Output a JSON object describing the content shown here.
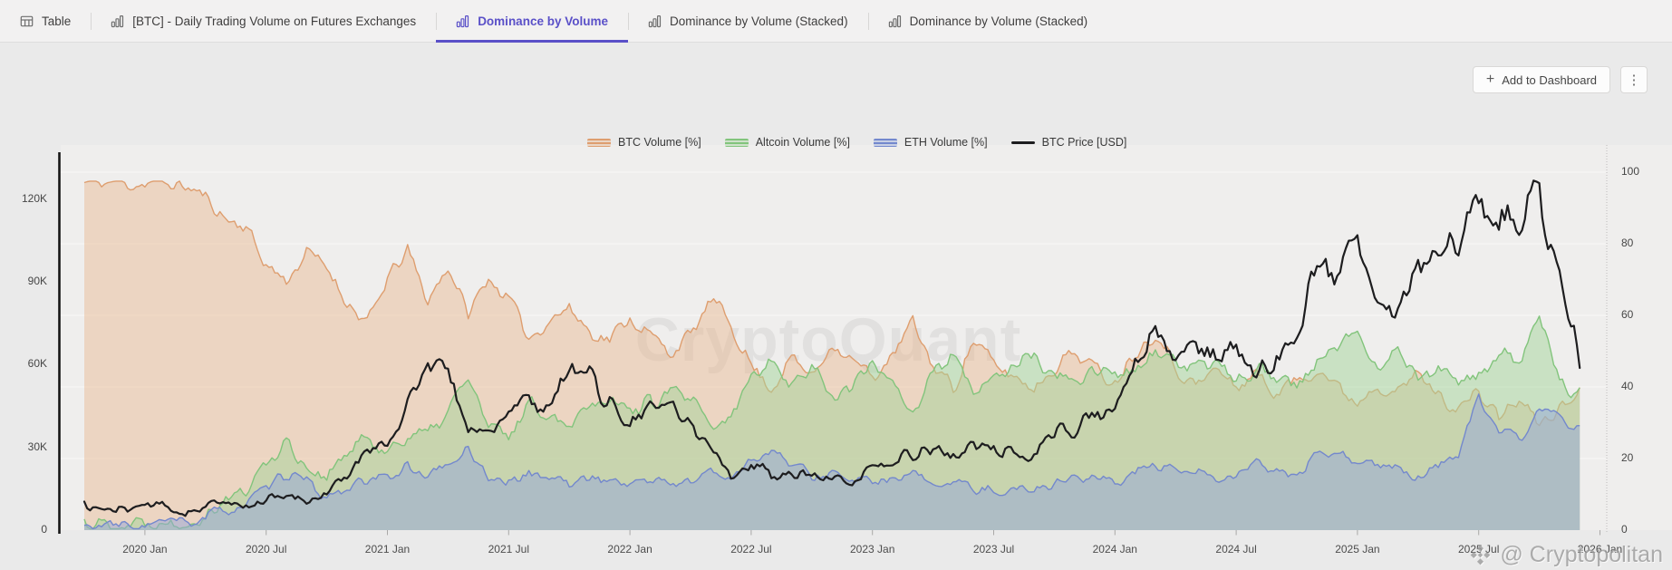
{
  "tabs": [
    {
      "id": "table",
      "icon": "table-icon",
      "label": "Table",
      "active": false
    },
    {
      "id": "btc-daily-trading-volume",
      "icon": "bar-chart-icon",
      "label": "[BTC] - Daily Trading Volume on Futures Exchanges",
      "active": false
    },
    {
      "id": "dominance-by-volume",
      "icon": "bar-chart-icon",
      "label": "Dominance by Volume",
      "active": true
    },
    {
      "id": "dominance-by-volume-stacked-1",
      "icon": "bar-chart-icon",
      "label": "Dominance by Volume (Stacked)",
      "active": false
    },
    {
      "id": "dominance-by-volume-stacked-2",
      "icon": "bar-chart-icon",
      "label": "Dominance by Volume (Stacked)",
      "active": false
    }
  ],
  "toolbar": {
    "add_to_dashboard_label": "Add to Dashboard",
    "plus_glyph": "+",
    "menu_glyph": "⋮"
  },
  "watermarks": {
    "center": "CryptoQuant",
    "corner": "@ Cryptopolitan",
    "corner_icon": "binance-diamond-icon"
  },
  "colors": {
    "accent": "#5a50c8",
    "btc_stroke": "#de9e6f",
    "btc_fill": "#e9b58d",
    "alt_stroke": "#82c47c",
    "alt_fill": "#a3d49a",
    "eth_stroke": "#7388cd",
    "eth_fill": "#93a6da",
    "price": "#1d1d1f"
  },
  "chart_data": {
    "type": "area",
    "title": "Dominance by Volume",
    "x_start_month": "2019-10",
    "x_ticks": [
      {
        "label": "2020 Jan",
        "m": 3
      },
      {
        "label": "2020 Jul",
        "m": 9
      },
      {
        "label": "2021 Jan",
        "m": 15
      },
      {
        "label": "2021 Jul",
        "m": 21
      },
      {
        "label": "2022 Jan",
        "m": 27
      },
      {
        "label": "2022 Jul",
        "m": 33
      },
      {
        "label": "2023 Jan",
        "m": 39
      },
      {
        "label": "2023 Jul",
        "m": 45
      },
      {
        "label": "2024 Jan",
        "m": 51
      },
      {
        "label": "2024 Jul",
        "m": 57
      },
      {
        "label": "2025 Jan",
        "m": 63
      },
      {
        "label": "2025 Jul",
        "m": 69
      },
      {
        "label": "2026 Jan",
        "m": 75
      }
    ],
    "left_axis": {
      "title": "BTC Price [USD]",
      "unit": "K USD",
      "ticks": [
        {
          "label": "0",
          "v": 0
        },
        {
          "label": "30K",
          "v": 30
        },
        {
          "label": "60K",
          "v": 60
        },
        {
          "label": "90K",
          "v": 90
        },
        {
          "label": "120K",
          "v": 120
        }
      ]
    },
    "right_axis": {
      "title": "Volume [%]",
      "unit": "%",
      "range": [
        0,
        100
      ],
      "ticks": [
        {
          "label": "0",
          "v": 0
        },
        {
          "label": "20",
          "v": 20
        },
        {
          "label": "40",
          "v": 40
        },
        {
          "label": "60",
          "v": 60
        },
        {
          "label": "80",
          "v": 80
        },
        {
          "label": "100",
          "v": 100
        }
      ],
      "grid": true
    },
    "series": [
      {
        "name": "BTC Volume [%]",
        "axis": "right",
        "kind": "area",
        "monthly_values": [
          97,
          97,
          97,
          97,
          97,
          96,
          93,
          87,
          85,
          74,
          70,
          77,
          74,
          64,
          57,
          70,
          78,
          64,
          74,
          60,
          71,
          64,
          54,
          59,
          62,
          56,
          53,
          60,
          54,
          50,
          54,
          64,
          58,
          46,
          40,
          48,
          43,
          53,
          47,
          43,
          48,
          58,
          46,
          40,
          53,
          46,
          43,
          40,
          46,
          50,
          45,
          42,
          50,
          56,
          46,
          40,
          45,
          40,
          44,
          38,
          42,
          46,
          40,
          36,
          42,
          38,
          44,
          38,
          34,
          38,
          32,
          36,
          30,
          34,
          38
        ]
      },
      {
        "name": "Altcoin Volume [%]",
        "axis": "right",
        "kind": "area",
        "monthly_values": [
          2,
          2,
          2,
          2,
          3,
          3,
          5,
          9,
          11,
          19,
          25,
          18,
          15,
          21,
          26,
          22,
          27,
          26,
          33,
          43,
          28,
          26,
          36,
          33,
          30,
          36,
          38,
          33,
          36,
          38,
          36,
          28,
          31,
          43,
          49,
          40,
          46,
          38,
          40,
          46,
          43,
          33,
          43,
          50,
          36,
          43,
          46,
          48,
          43,
          40,
          46,
          43,
          46,
          50,
          46,
          43,
          48,
          43,
          46,
          43,
          40,
          46,
          50,
          58,
          46,
          50,
          43,
          46,
          40,
          43,
          50,
          46,
          58,
          42,
          38
        ]
      },
      {
        "name": "ETH Volume [%]",
        "axis": "right",
        "kind": "area",
        "monthly_values": [
          1,
          1,
          1,
          1,
          2,
          2,
          3,
          6,
          7,
          11,
          16,
          13,
          9,
          12,
          13,
          15,
          18,
          15,
          18,
          23,
          15,
          13,
          16,
          15,
          13,
          15,
          14,
          13,
          14,
          13,
          14,
          16,
          15,
          20,
          22,
          18,
          15,
          16,
          13,
          14,
          13,
          15,
          14,
          13,
          11,
          12,
          11,
          12,
          13,
          15,
          14,
          14,
          16,
          18,
          15,
          16,
          14,
          15,
          18,
          16,
          15,
          20,
          22,
          20,
          18,
          16,
          15,
          18,
          21,
          38,
          27,
          25,
          34,
          30,
          29
        ]
      },
      {
        "name": "BTC Price [USD]",
        "axis": "left",
        "kind": "line",
        "monthly_values": [
          8.3,
          7.5,
          7.2,
          9.4,
          8.6,
          6.4,
          8.7,
          9.5,
          9.1,
          11.3,
          11.7,
          10.8,
          13.8,
          19.7,
          29,
          33,
          45,
          59,
          57.7,
          37.3,
          35,
          41.5,
          47,
          43.8,
          61.3,
          57,
          46.2,
          38.5,
          43.2,
          45.5,
          37.6,
          31.8,
          19.9,
          23.3,
          20,
          19.4,
          20.5,
          17.2,
          16.5,
          23.1,
          23.5,
          28.5,
          29.2,
          27.2,
          30.5,
          29.2,
          26,
          27,
          34.7,
          37.7,
          42.3,
          42.6,
          61.2,
          71.3,
          60.6,
          67.5,
          62.7,
          64.6,
          59,
          63.3,
          70.2,
          96.4,
          93.4,
          102,
          84.3,
          82.5,
          94.2,
          104,
          107,
          118,
          113,
          117,
          121,
          90,
          66
        ]
      }
    ],
    "legend_position": "top-center",
    "grid": true
  }
}
